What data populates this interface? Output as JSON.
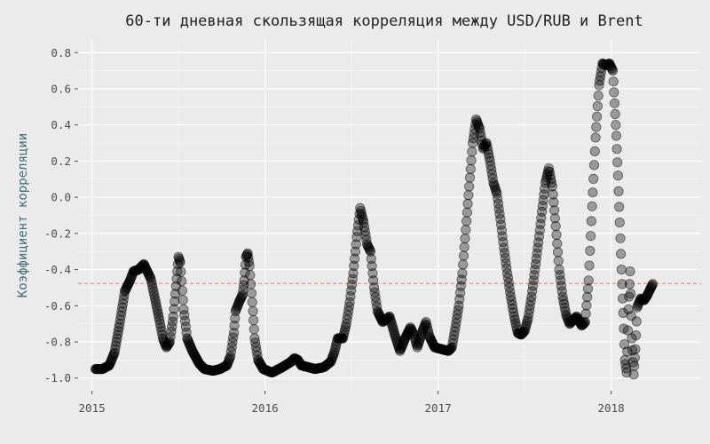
{
  "chart_data": {
    "type": "scatter",
    "title": "60-ти дневная скользящая корреляция между USD/RUB и Brent",
    "xlabel": "",
    "ylabel": "Коэффициент корреляции",
    "xlim": [
      2014.92,
      2018.52
    ],
    "ylim": [
      -1.07,
      0.87
    ],
    "x_ticks": [
      2015,
      2016,
      2017,
      2018
    ],
    "x_tick_labels": [
      "2015",
      "2016",
      "2017",
      "2018"
    ],
    "y_ticks": [
      -1.0,
      -0.8,
      -0.6,
      -0.4,
      -0.2,
      0.0,
      0.2,
      0.4,
      0.6,
      0.8
    ],
    "y_tick_labels": [
      "-1.0",
      "-0.8",
      "-0.6",
      "-0.4",
      "-0.2",
      "0.0",
      "0.2",
      "0.4",
      "0.6",
      "0.8"
    ],
    "grid": true,
    "reference_line": {
      "y": -0.477,
      "color": "#e88080",
      "style": "dashed"
    },
    "colors": {
      "background": "#ebebeb",
      "panel": "#ebebeb",
      "grid": "#ffffff",
      "point_fill": "#000000",
      "point_opacity": 0.35,
      "point_stroke": "#000000"
    },
    "series": [
      {
        "name": "",
        "keypoints": [
          [
            2015.02,
            -0.95
          ],
          [
            2015.06,
            -0.95
          ],
          [
            2015.1,
            -0.93
          ],
          [
            2015.13,
            -0.86
          ],
          [
            2015.16,
            -0.7
          ],
          [
            2015.19,
            -0.52
          ],
          [
            2015.22,
            -0.46
          ],
          [
            2015.24,
            -0.41
          ],
          [
            2015.27,
            -0.4
          ],
          [
            2015.3,
            -0.37
          ],
          [
            2015.32,
            -0.41
          ],
          [
            2015.34,
            -0.45
          ],
          [
            2015.36,
            -0.54
          ],
          [
            2015.39,
            -0.68
          ],
          [
            2015.41,
            -0.78
          ],
          [
            2015.43,
            -0.83
          ],
          [
            2015.45,
            -0.8
          ],
          [
            2015.47,
            -0.66
          ],
          [
            2015.49,
            -0.45
          ],
          [
            2015.5,
            -0.33
          ],
          [
            2015.51,
            -0.36
          ],
          [
            2015.53,
            -0.62
          ],
          [
            2015.55,
            -0.78
          ],
          [
            2015.58,
            -0.85
          ],
          [
            2015.62,
            -0.92
          ],
          [
            2015.65,
            -0.95
          ],
          [
            2015.7,
            -0.96
          ],
          [
            2015.74,
            -0.95
          ],
          [
            2015.78,
            -0.93
          ],
          [
            2015.8,
            -0.88
          ],
          [
            2015.82,
            -0.75
          ],
          [
            2015.83,
            -0.63
          ],
          [
            2015.85,
            -0.58
          ],
          [
            2015.87,
            -0.54
          ],
          [
            2015.88,
            -0.46
          ],
          [
            2015.89,
            -0.33
          ],
          [
            2015.9,
            -0.31
          ],
          [
            2015.91,
            -0.38
          ],
          [
            2015.93,
            -0.63
          ],
          [
            2015.94,
            -0.78
          ],
          [
            2015.96,
            -0.9
          ],
          [
            2015.99,
            -0.95
          ],
          [
            2016.04,
            -0.97
          ],
          [
            2016.1,
            -0.94
          ],
          [
            2016.15,
            -0.91
          ],
          [
            2016.17,
            -0.89
          ],
          [
            2016.19,
            -0.9
          ],
          [
            2016.21,
            -0.93
          ],
          [
            2016.25,
            -0.94
          ],
          [
            2016.29,
            -0.95
          ],
          [
            2016.34,
            -0.94
          ],
          [
            2016.38,
            -0.91
          ],
          [
            2016.4,
            -0.86
          ],
          [
            2016.42,
            -0.78
          ],
          [
            2016.45,
            -0.78
          ],
          [
            2016.47,
            -0.7
          ],
          [
            2016.49,
            -0.58
          ],
          [
            2016.51,
            -0.42
          ],
          [
            2016.53,
            -0.22
          ],
          [
            2016.55,
            -0.06
          ],
          [
            2016.57,
            -0.14
          ],
          [
            2016.59,
            -0.26
          ],
          [
            2016.61,
            -0.3
          ],
          [
            2016.63,
            -0.5
          ],
          [
            2016.65,
            -0.63
          ],
          [
            2016.68,
            -0.69
          ],
          [
            2016.72,
            -0.66
          ],
          [
            2016.75,
            -0.76
          ],
          [
            2016.78,
            -0.85
          ],
          [
            2016.81,
            -0.78
          ],
          [
            2016.84,
            -0.72
          ],
          [
            2016.86,
            -0.76
          ],
          [
            2016.88,
            -0.83
          ],
          [
            2016.91,
            -0.74
          ],
          [
            2016.93,
            -0.69
          ],
          [
            2016.95,
            -0.77
          ],
          [
            2016.98,
            -0.83
          ],
          [
            2017.02,
            -0.84
          ],
          [
            2017.06,
            -0.85
          ],
          [
            2017.08,
            -0.83
          ],
          [
            2017.1,
            -0.72
          ],
          [
            2017.12,
            -0.6
          ],
          [
            2017.14,
            -0.42
          ],
          [
            2017.16,
            -0.18
          ],
          [
            2017.18,
            0.06
          ],
          [
            2017.2,
            0.3
          ],
          [
            2017.22,
            0.43
          ],
          [
            2017.24,
            0.38
          ],
          [
            2017.26,
            0.27
          ],
          [
            2017.28,
            0.3
          ],
          [
            2017.3,
            0.2
          ],
          [
            2017.32,
            0.08
          ],
          [
            2017.34,
            0.02
          ],
          [
            2017.36,
            -0.12
          ],
          [
            2017.38,
            -0.28
          ],
          [
            2017.4,
            -0.42
          ],
          [
            2017.42,
            -0.55
          ],
          [
            2017.44,
            -0.66
          ],
          [
            2017.46,
            -0.75
          ],
          [
            2017.48,
            -0.76
          ],
          [
            2017.5,
            -0.74
          ],
          [
            2017.52,
            -0.67
          ],
          [
            2017.54,
            -0.55
          ],
          [
            2017.56,
            -0.4
          ],
          [
            2017.58,
            -0.25
          ],
          [
            2017.6,
            -0.08
          ],
          [
            2017.62,
            0.08
          ],
          [
            2017.64,
            0.16
          ],
          [
            2017.66,
            0.06
          ],
          [
            2017.68,
            -0.16
          ],
          [
            2017.7,
            -0.4
          ],
          [
            2017.72,
            -0.55
          ],
          [
            2017.74,
            -0.65
          ],
          [
            2017.76,
            -0.7
          ],
          [
            2017.8,
            -0.66
          ],
          [
            2017.83,
            -0.71
          ],
          [
            2017.85,
            -0.69
          ],
          [
            2017.87,
            -0.46
          ],
          [
            2017.89,
            -0.05
          ],
          [
            2017.91,
            0.33
          ],
          [
            2017.93,
            0.62
          ],
          [
            2017.95,
            0.74
          ],
          [
            2017.97,
            0.73
          ],
          [
            2017.99,
            0.74
          ],
          [
            2018.01,
            0.7
          ],
          [
            2018.02,
            0.52
          ],
          [
            2018.03,
            0.34
          ],
          [
            2018.04,
            0.12
          ],
          [
            2018.05,
            -0.14
          ],
          [
            2018.06,
            -0.4
          ],
          [
            2018.07,
            -0.64
          ],
          [
            2018.08,
            -0.9
          ],
          [
            2018.09,
            -0.97
          ],
          [
            2018.1,
            -0.62
          ],
          [
            2018.11,
            -0.41
          ],
          [
            2018.12,
            -0.78
          ],
          [
            2018.13,
            -0.98
          ],
          [
            2018.14,
            -0.84
          ],
          [
            2018.15,
            -0.61
          ],
          [
            2018.17,
            -0.56
          ],
          [
            2018.19,
            -0.57
          ],
          [
            2018.21,
            -0.54
          ],
          [
            2018.23,
            -0.5
          ],
          [
            2018.24,
            -0.48
          ]
        ]
      }
    ]
  }
}
